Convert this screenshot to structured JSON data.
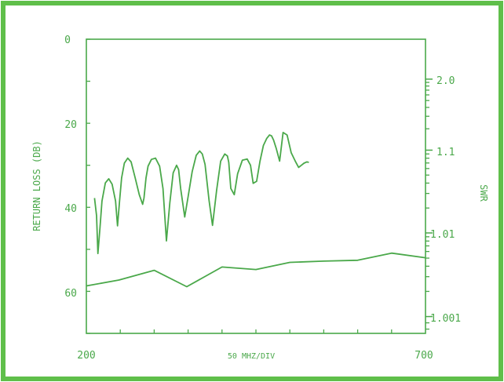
{
  "chart_data": {
    "type": "line",
    "title": "",
    "xlabel": "50 MHZ/DIV",
    "ylabel": "RETURN LOSS (DB)",
    "y2label": "SWR",
    "x_ticklabels": [
      "200",
      "700"
    ],
    "xlim": [
      200,
      700
    ],
    "ylim": [
      70,
      0
    ],
    "y_ticklabels": [
      "0",
      "20",
      "40",
      "60"
    ],
    "y2_ticklabels": [
      "2.0",
      "1.1",
      "1.01",
      "1.001"
    ],
    "y2_tick_positions_db": [
      9.5,
      26.4,
      46.1,
      66.0
    ],
    "colors": {
      "border": "#5fbf4a",
      "line": "#4aa84a"
    },
    "series": [
      {
        "x": [
          212,
          215,
          217,
          220,
          223,
          228,
          233,
          238,
          243,
          246,
          249,
          252,
          256,
          261,
          266,
          272,
          278,
          283,
          285,
          288,
          291,
          296,
          302,
          308,
          313,
          318,
          323,
          328,
          333,
          336,
          339,
          345,
          350,
          356,
          362,
          367,
          371,
          375,
          381,
          386,
          392,
          398,
          404,
          408,
          410,
          413,
          418,
          423,
          430,
          437,
          442,
          446,
          451,
          456,
          461,
          466,
          470,
          473,
          476,
          480,
          485,
          490,
          496,
          502,
          508,
          513,
          517,
          521,
          525,
          528
        ],
        "y": [
          37.8,
          42,
          51,
          45,
          38.5,
          34.2,
          33.2,
          34.5,
          38.5,
          44.4,
          38.5,
          33,
          29.5,
          28.3,
          29.2,
          33,
          37,
          39.3,
          37.8,
          33,
          30.2,
          28.6,
          28.3,
          30.2,
          35.5,
          48,
          39,
          31.8,
          30,
          31,
          35.5,
          42.3,
          37.5,
          31.5,
          27.6,
          26.6,
          27.3,
          29.8,
          38.5,
          44.3,
          36,
          29,
          27.3,
          27.8,
          29.3,
          35.5,
          37,
          32,
          28.8,
          28.5,
          30,
          34.3,
          33.8,
          29,
          25.3,
          23.6,
          22.8,
          23,
          24,
          26,
          29,
          22.2,
          22.8,
          27,
          29,
          30.5,
          30,
          29.5,
          29.2,
          29.3
        ]
      },
      {
        "x": [
          200,
          248,
          300,
          348,
          400,
          450,
          500,
          550,
          600,
          650,
          700
        ],
        "y": [
          58.7,
          57.3,
          55,
          58.9,
          54.2,
          54.8,
          53.1,
          52.8,
          52.6,
          50.9,
          52
        ]
      }
    ]
  }
}
